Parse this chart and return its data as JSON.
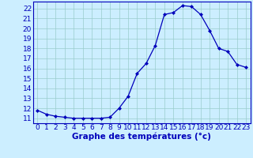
{
  "x": [
    0,
    1,
    2,
    3,
    4,
    5,
    6,
    7,
    8,
    9,
    10,
    11,
    12,
    13,
    14,
    15,
    16,
    17,
    18,
    19,
    20,
    21,
    22,
    23
  ],
  "y": [
    11.8,
    11.4,
    11.2,
    11.1,
    11.0,
    11.0,
    11.0,
    11.0,
    11.1,
    12.0,
    13.2,
    15.5,
    16.5,
    18.3,
    21.4,
    21.6,
    22.3,
    22.2,
    21.4,
    19.8,
    18.0,
    17.7,
    16.4,
    16.1
  ],
  "xlabel": "Graphe des températures (°c)",
  "xlim": [
    -0.5,
    23.5
  ],
  "ylim": [
    10.5,
    22.7
  ],
  "yticks": [
    11,
    12,
    13,
    14,
    15,
    16,
    17,
    18,
    19,
    20,
    21,
    22
  ],
  "xticks": [
    0,
    1,
    2,
    3,
    4,
    5,
    6,
    7,
    8,
    9,
    10,
    11,
    12,
    13,
    14,
    15,
    16,
    17,
    18,
    19,
    20,
    21,
    22,
    23
  ],
  "line_color": "#0000bb",
  "marker_color": "#0000bb",
  "bg_color": "#cceeff",
  "grid_color": "#99cccc",
  "border_color": "#0000bb",
  "xlabel_color": "#0000bb",
  "tick_color": "#0000bb",
  "font_size_xlabel": 7.5,
  "font_size_ticks": 6.5
}
